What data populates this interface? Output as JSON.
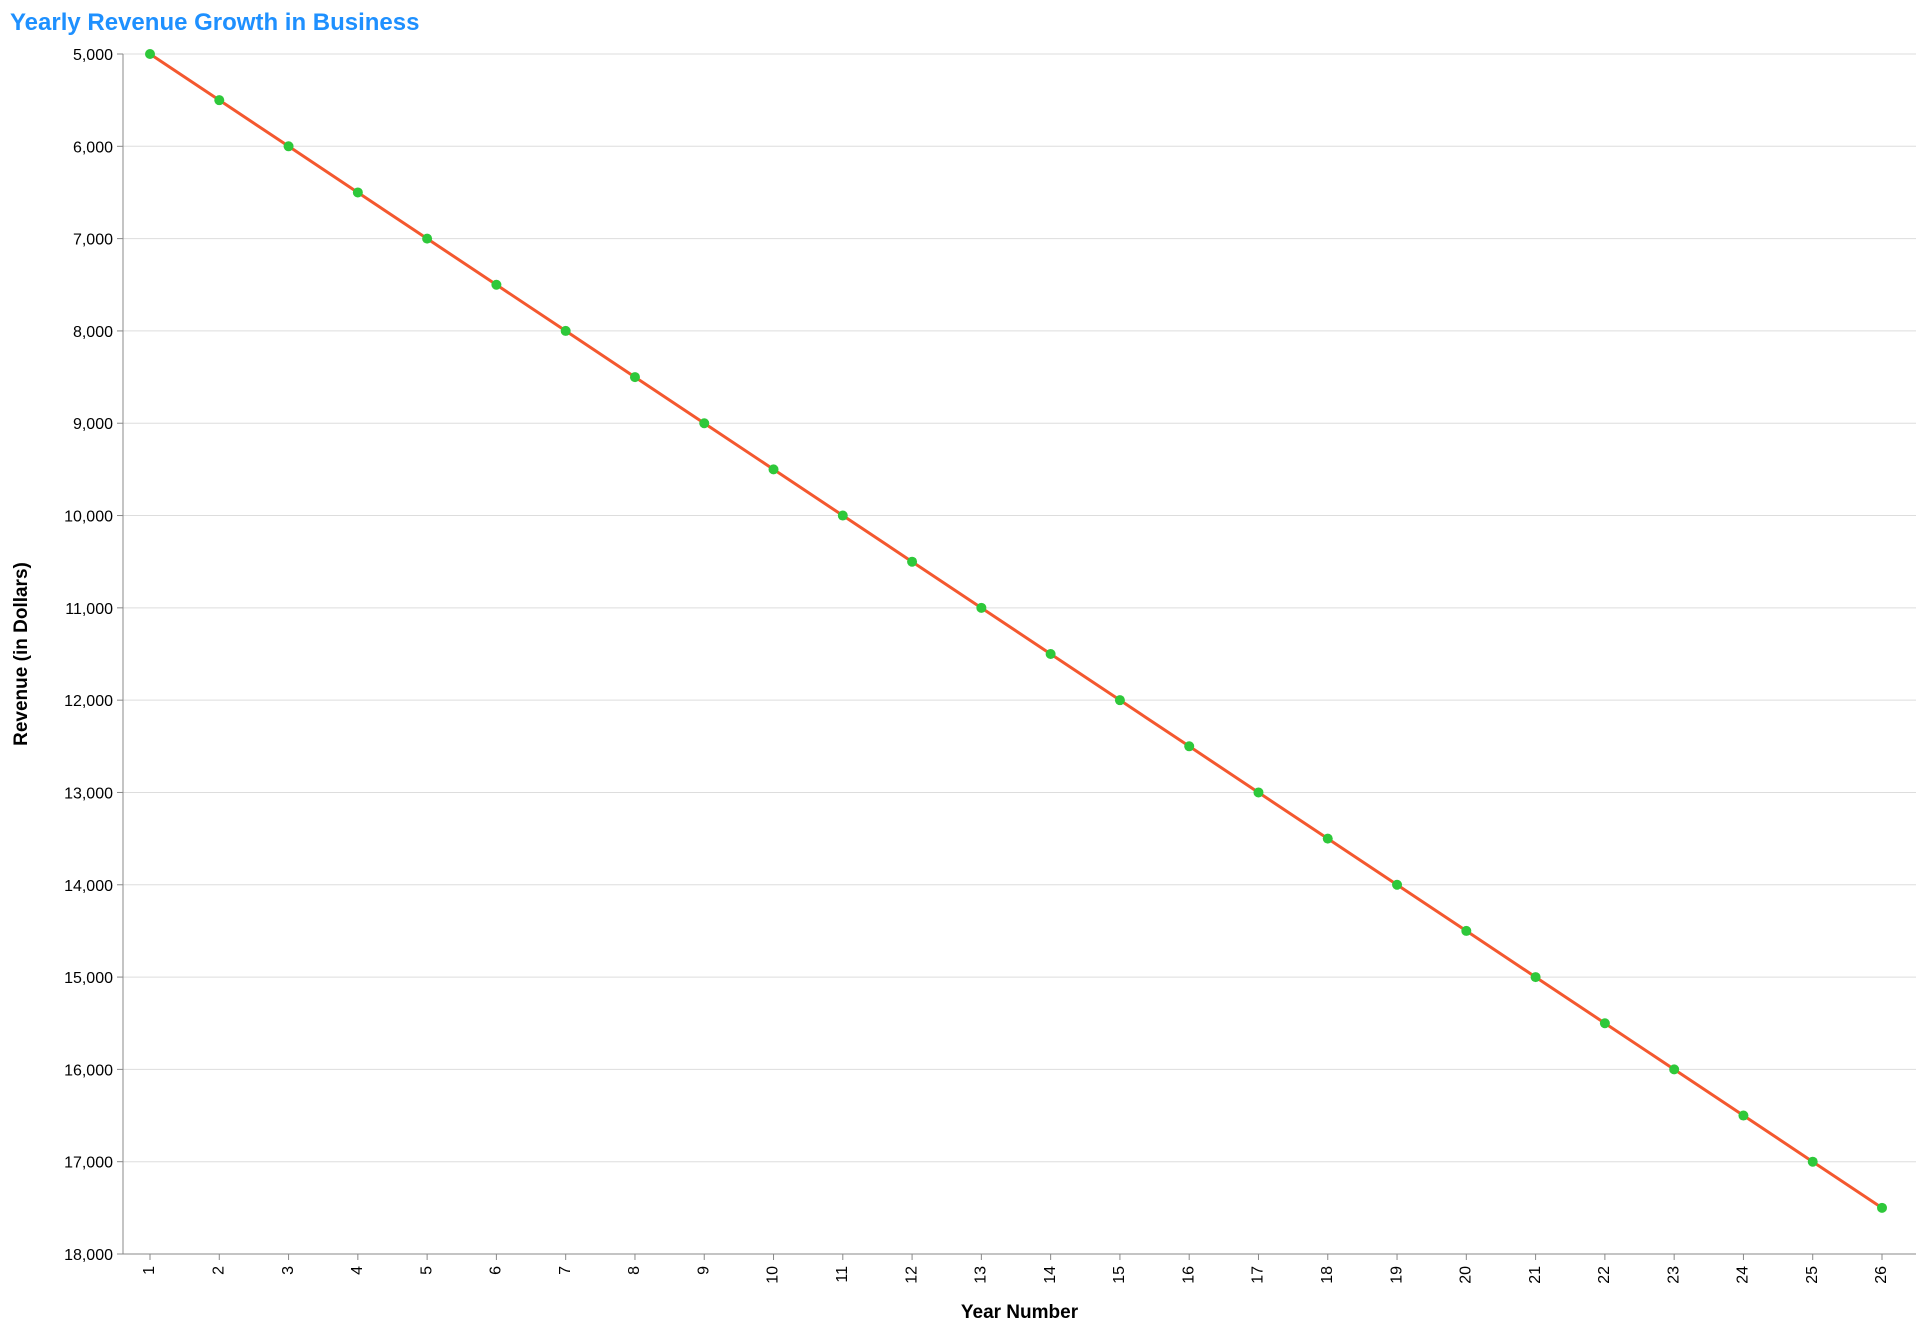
{
  "chart_data": {
    "type": "line",
    "title": "Yearly Revenue Growth in Business",
    "xlabel": "Year Number",
    "ylabel": "Revenue (in Dollars)",
    "x": [
      1,
      2,
      3,
      4,
      5,
      6,
      7,
      8,
      9,
      10,
      11,
      12,
      13,
      14,
      15,
      16,
      17,
      18,
      19,
      20,
      21,
      22,
      23,
      24,
      25,
      26
    ],
    "series": [
      {
        "values": [
          5000,
          5500,
          6000,
          6500,
          7000,
          7500,
          8000,
          8500,
          9000,
          9500,
          10000,
          10500,
          11000,
          11500,
          12000,
          12500,
          13000,
          13500,
          14000,
          14500,
          15000,
          15500,
          16000,
          16500,
          17000,
          17500
        ],
        "line_color": "#f4582f",
        "point_color": "#2ec83a"
      }
    ],
    "ylim": [
      5000,
      18000
    ],
    "y_reversed": true,
    "y_ticks": [
      5000,
      6000,
      7000,
      8000,
      9000,
      10000,
      11000,
      12000,
      13000,
      14000,
      15000,
      16000,
      17000,
      18000
    ],
    "y_tick_labels": [
      "5,000",
      "6,000",
      "7,000",
      "8,000",
      "9,000",
      "10,000",
      "11,000",
      "12,000",
      "13,000",
      "14,000",
      "15,000",
      "16,000",
      "17,000",
      "18,000"
    ],
    "x_tick_labels": [
      "1",
      "2",
      "3",
      "4",
      "5",
      "6",
      "7",
      "8",
      "9",
      "10",
      "11",
      "12",
      "13",
      "14",
      "15",
      "16",
      "17",
      "18",
      "19",
      "20",
      "21",
      "22",
      "23",
      "24",
      "25",
      "26"
    ],
    "grid": true,
    "title_color": "#1e90ff"
  }
}
